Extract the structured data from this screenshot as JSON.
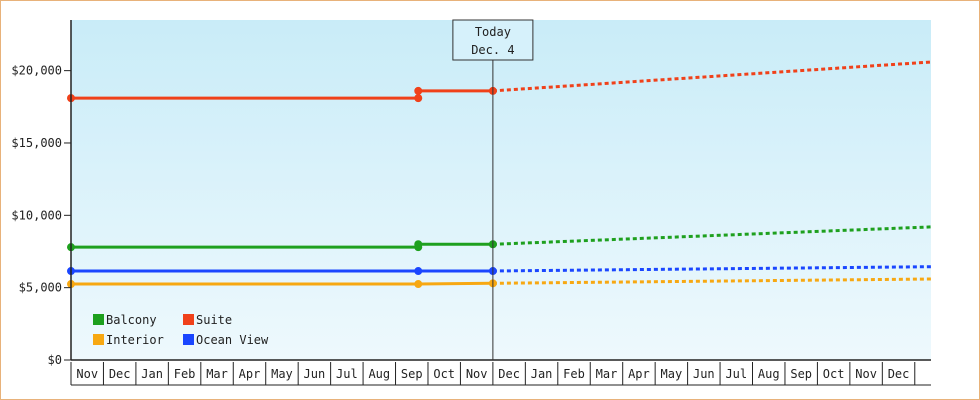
{
  "chart_data": {
    "type": "line",
    "title": "",
    "xlabel": "",
    "ylabel": "",
    "ylim": [
      0,
      23500
    ],
    "y_ticks": [
      0,
      5000,
      10000,
      15000,
      20000
    ],
    "y_tick_labels": [
      "$0",
      "$5,000",
      "$10,000",
      "$15,000",
      "$20,000"
    ],
    "x_tick_labels": [
      "Nov",
      "Dec",
      "Jan",
      "Feb",
      "Mar",
      "Apr",
      "May",
      "Jun",
      "Jul",
      "Aug",
      "Sep",
      "Oct",
      "Nov",
      "Dec",
      "Jan",
      "Feb",
      "Mar",
      "Apr",
      "May",
      "Jun",
      "Jul",
      "Aug",
      "Sep",
      "Oct",
      "Nov",
      "Dec"
    ],
    "grid": false,
    "legend_position": "bottom-left",
    "today_marker": {
      "line1": "Today",
      "line2": "Dec. 4",
      "month_index": 13
    },
    "series": [
      {
        "name": "Suite",
        "color": "#f0411a",
        "actual": [
          [
            0,
            18100
          ],
          [
            10.7,
            18100
          ],
          [
            10.7,
            18600
          ],
          [
            13,
            18600
          ]
        ],
        "actual_points": [
          [
            0,
            18100
          ],
          [
            10.7,
            18100
          ],
          [
            10.7,
            18600
          ],
          [
            13,
            18600
          ]
        ],
        "forecast": [
          [
            13,
            18600
          ],
          [
            26.5,
            20600
          ]
        ]
      },
      {
        "name": "Balcony",
        "color": "#1ea01e",
        "actual": [
          [
            0,
            7800
          ],
          [
            10.7,
            7800
          ],
          [
            10.7,
            8000
          ],
          [
            13,
            8000
          ]
        ],
        "actual_points": [
          [
            0,
            7800
          ],
          [
            10.7,
            7800
          ],
          [
            10.7,
            8000
          ],
          [
            13,
            8000
          ]
        ],
        "forecast": [
          [
            13,
            8000
          ],
          [
            26.5,
            9200
          ]
        ]
      },
      {
        "name": "Ocean View",
        "color": "#1a46ff",
        "actual": [
          [
            0,
            6150
          ],
          [
            10.7,
            6150
          ],
          [
            13,
            6150
          ]
        ],
        "actual_points": [
          [
            0,
            6150
          ],
          [
            10.7,
            6150
          ],
          [
            13,
            6150
          ]
        ],
        "forecast": [
          [
            13,
            6150
          ],
          [
            26.5,
            6450
          ]
        ]
      },
      {
        "name": "Interior",
        "color": "#f7a812",
        "actual": [
          [
            0,
            5250
          ],
          [
            10.7,
            5250
          ],
          [
            13,
            5300
          ]
        ],
        "actual_points": [
          [
            0,
            5250
          ],
          [
            10.7,
            5250
          ],
          [
            13,
            5300
          ]
        ],
        "forecast": [
          [
            13,
            5300
          ],
          [
            26.5,
            5600
          ]
        ]
      }
    ],
    "legend": [
      {
        "label": "Balcony",
        "color": "#1ea01e"
      },
      {
        "label": "Suite",
        "color": "#f0411a"
      },
      {
        "label": "Interior",
        "color": "#f7a812"
      },
      {
        "label": "Ocean View",
        "color": "#1a46ff"
      }
    ]
  }
}
